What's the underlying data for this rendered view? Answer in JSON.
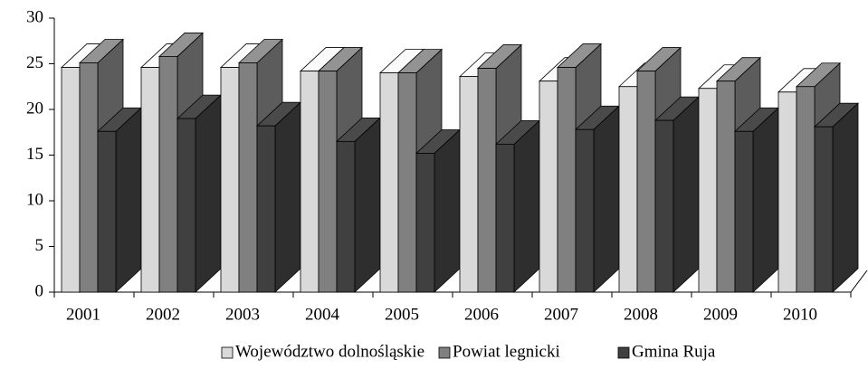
{
  "chart_data": {
    "type": "bar3d",
    "categories": [
      "2001",
      "2002",
      "2003",
      "2004",
      "2005",
      "2006",
      "2007",
      "2008",
      "2009",
      "2010"
    ],
    "series": [
      {
        "name": "Województwo dolnośląskie",
        "color": "#d9d9d9",
        "values": [
          24.6,
          24.6,
          24.6,
          24.2,
          24.0,
          23.6,
          23.1,
          22.5,
          22.3,
          21.9
        ]
      },
      {
        "name": "Powiat legnicki",
        "color": "#808080",
        "values": [
          25.1,
          25.8,
          25.1,
          24.2,
          24.0,
          24.5,
          24.6,
          24.2,
          23.1,
          22.5
        ]
      },
      {
        "name": "Gmina Ruja",
        "color": "#404040",
        "values": [
          17.6,
          19.0,
          18.2,
          16.5,
          15.2,
          16.2,
          17.8,
          18.8,
          17.6,
          18.1
        ]
      }
    ],
    "ylim": [
      0,
      30
    ],
    "yticks": [
      0,
      5,
      10,
      15,
      20,
      25,
      30
    ],
    "legend": "bottom"
  }
}
